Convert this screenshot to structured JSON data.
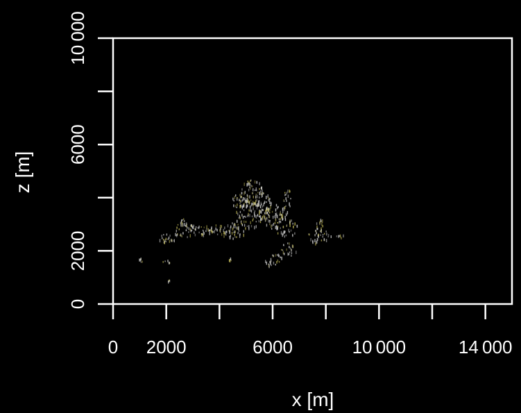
{
  "chart_data": {
    "type": "scatter",
    "title": "",
    "xlabel": "x [m]",
    "ylabel": "z [m]",
    "xlim": [
      0,
      15000
    ],
    "ylim": [
      0,
      10000
    ],
    "x_ticks": [
      0,
      2000,
      4000,
      6000,
      8000,
      10000,
      12000,
      14000
    ],
    "x_tick_labels": [
      "0",
      "2000",
      "",
      "6000",
      "",
      "10 000",
      "",
      "14 000"
    ],
    "y_ticks": [
      0,
      2000,
      4000,
      6000,
      8000,
      10000
    ],
    "y_tick_labels": [
      "0",
      "2000",
      "",
      "6000",
      "",
      "10 000"
    ],
    "grid": false,
    "background": "#000000",
    "colors": {
      "axis": "#ffffff",
      "cloud": "#c8c8c8",
      "cloud_tint": "#b6ae52"
    },
    "cloud_regions": [
      {
        "x": 5200,
        "z": 4200,
        "rx": 450,
        "rz": 500
      },
      {
        "x": 5100,
        "z": 3400,
        "rx": 550,
        "rz": 550
      },
      {
        "x": 4700,
        "z": 3900,
        "rx": 250,
        "rz": 300
      },
      {
        "x": 5600,
        "z": 3700,
        "rx": 350,
        "rz": 600
      },
      {
        "x": 6000,
        "z": 3300,
        "rx": 350,
        "rz": 500
      },
      {
        "x": 6500,
        "z": 2900,
        "rx": 450,
        "rz": 350
      },
      {
        "x": 6550,
        "z": 4000,
        "rx": 150,
        "rz": 350
      },
      {
        "x": 6400,
        "z": 3500,
        "rx": 180,
        "rz": 300
      },
      {
        "x": 4500,
        "z": 2800,
        "rx": 500,
        "rz": 300
      },
      {
        "x": 3900,
        "z": 2800,
        "rx": 350,
        "rz": 200
      },
      {
        "x": 3400,
        "z": 2800,
        "rx": 400,
        "rz": 200
      },
      {
        "x": 2700,
        "z": 2800,
        "rx": 450,
        "rz": 280
      },
      {
        "x": 2000,
        "z": 2500,
        "rx": 350,
        "rz": 200
      },
      {
        "x": 2700,
        "z": 3100,
        "rx": 200,
        "rz": 150
      },
      {
        "x": 7700,
        "z": 2600,
        "rx": 400,
        "rz": 300
      },
      {
        "x": 7800,
        "z": 3000,
        "rx": 200,
        "rz": 250
      },
      {
        "x": 8400,
        "z": 2600,
        "rx": 250,
        "rz": 100
      },
      {
        "x": 6000,
        "z": 1700,
        "rx": 350,
        "rz": 250
      },
      {
        "x": 6600,
        "z": 2100,
        "rx": 300,
        "rz": 250
      },
      {
        "x": 2000,
        "z": 1600,
        "rx": 150,
        "rz": 100
      },
      {
        "x": 1050,
        "z": 1700,
        "rx": 100,
        "rz": 100
      },
      {
        "x": 2100,
        "z": 900,
        "rx": 60,
        "rz": 60
      },
      {
        "x": 4400,
        "z": 1700,
        "rx": 80,
        "rz": 60
      }
    ]
  }
}
